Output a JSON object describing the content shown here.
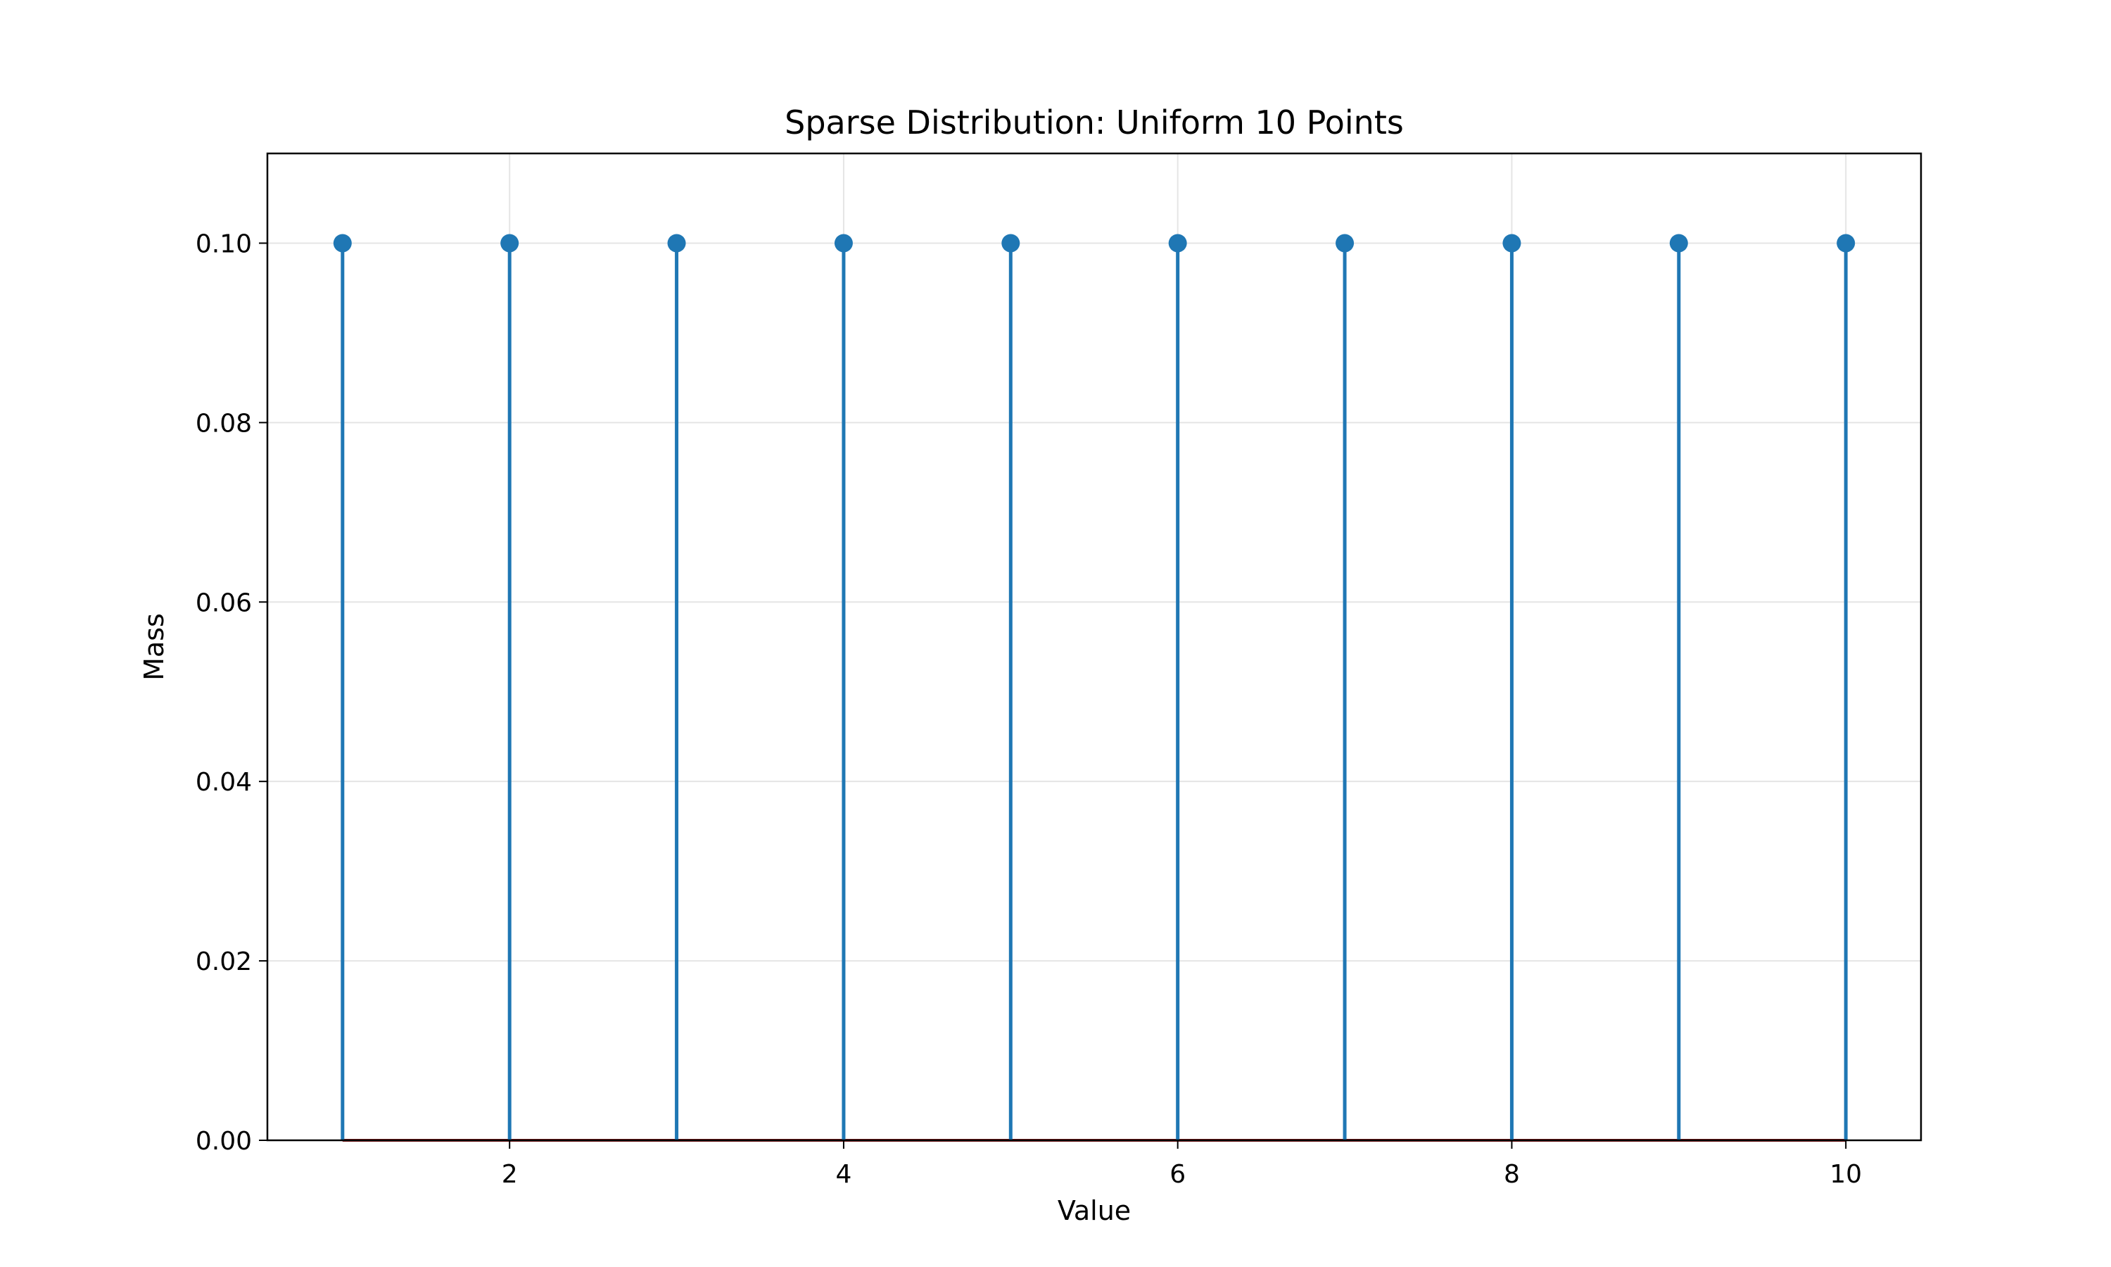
{
  "chart_data": {
    "type": "stem",
    "title": "Sparse Distribution: Uniform 10 Points",
    "xlabel": "Value",
    "ylabel": "Mass",
    "x": [
      1,
      2,
      3,
      4,
      5,
      6,
      7,
      8,
      9,
      10
    ],
    "y": [
      0.1,
      0.1,
      0.1,
      0.1,
      0.1,
      0.1,
      0.1,
      0.1,
      0.1,
      0.1
    ],
    "xlim": [
      0.55,
      10.45
    ],
    "ylim": [
      0.0,
      0.11
    ],
    "xticks": [
      2,
      4,
      6,
      8,
      10
    ],
    "xtick_labels": [
      "2",
      "4",
      "6",
      "8",
      "10"
    ],
    "yticks": [
      0.0,
      0.02,
      0.04,
      0.06,
      0.08,
      0.1
    ],
    "ytick_labels": [
      "0.00",
      "0.02",
      "0.04",
      "0.06",
      "0.08",
      "0.10"
    ],
    "grid": true,
    "legend": "none",
    "colors": {
      "stem": "#1f77b4",
      "marker": "#1f77b4",
      "baseline": "#8b1a1a",
      "grid": "#e5e5e5"
    }
  }
}
